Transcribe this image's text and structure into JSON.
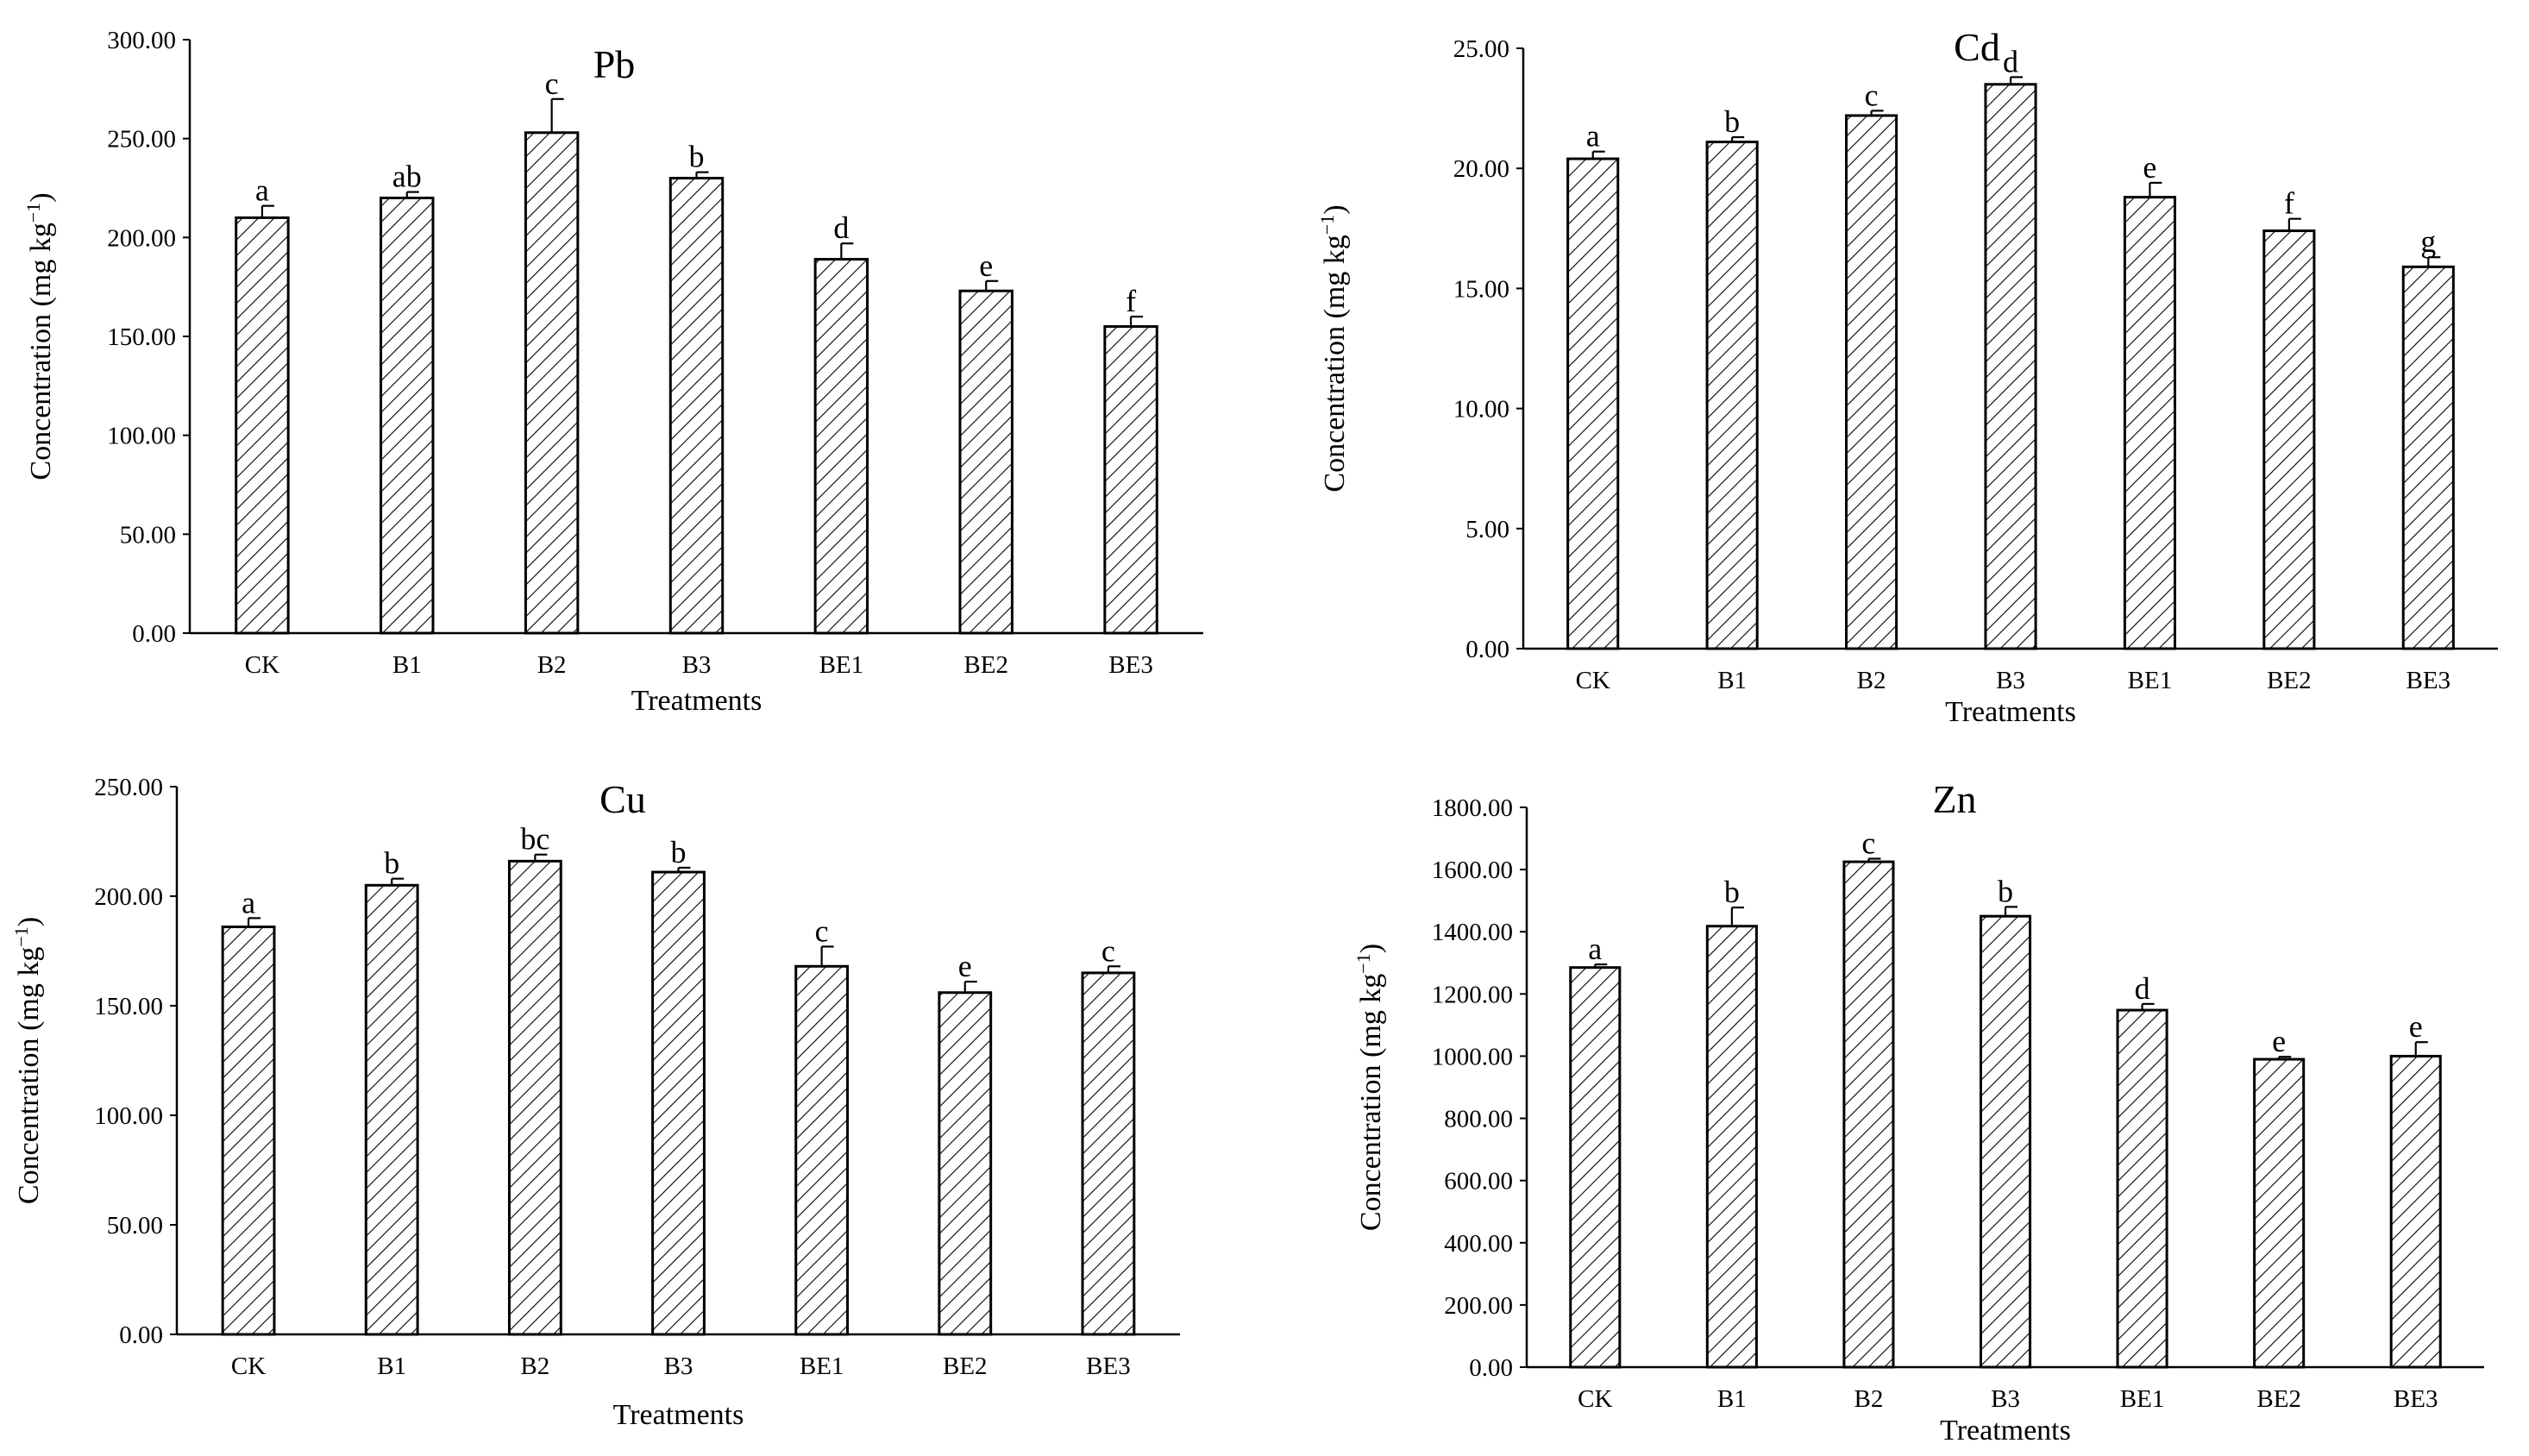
{
  "chart_data": [
    {
      "type": "bar",
      "title": "Pb",
      "xlabel": "Treatments",
      "ylabel": "Concentration (mg kg",
      "ylabel_sup": "−1",
      "ylabel_close": ")",
      "categories": [
        "CK",
        "B1",
        "B2",
        "B3",
        "BE1",
        "BE2",
        "BE3"
      ],
      "values": [
        210,
        220,
        253,
        230,
        189,
        173,
        155
      ],
      "error": [
        6,
        3,
        17,
        3,
        8,
        5,
        5
      ],
      "letters": [
        "a",
        "ab",
        "c",
        "b",
        "d",
        "e",
        "f"
      ],
      "ylim": [
        0,
        300
      ],
      "yticks": [
        "0.00",
        "50.00",
        "100.00",
        "150.00",
        "200.00",
        "250.00",
        "300.00"
      ],
      "grid": false,
      "pattern": "diagonal hatch"
    },
    {
      "type": "bar",
      "title": "Cd",
      "xlabel": "Treatments",
      "ylabel": "Concentration (mg kg",
      "ylabel_sup": "−1",
      "ylabel_close": ")",
      "categories": [
        "CK",
        "B1",
        "B2",
        "B3",
        "BE1",
        "BE2",
        "BE3"
      ],
      "values": [
        20.4,
        21.1,
        22.2,
        23.5,
        18.8,
        17.4,
        15.9
      ],
      "error": [
        0.3,
        0.2,
        0.2,
        0.3,
        0.6,
        0.5,
        0.4
      ],
      "letters": [
        "a",
        "b",
        "c",
        "d",
        "e",
        "f",
        "g"
      ],
      "ylim": [
        0,
        25
      ],
      "yticks": [
        "0.00",
        "5.00",
        "10.00",
        "15.00",
        "20.00",
        "25.00"
      ],
      "grid": false,
      "pattern": "diagonal hatch"
    },
    {
      "type": "bar",
      "title": "Cu",
      "xlabel": "Treatments",
      "ylabel": "Concentration (mg kg",
      "ylabel_sup": "−1",
      "ylabel_close": ")",
      "categories": [
        "CK",
        "B1",
        "B2",
        "B3",
        "BE1",
        "BE2",
        "BE3"
      ],
      "values": [
        186,
        205,
        216,
        211,
        168,
        156,
        165
      ],
      "error": [
        4,
        3,
        3,
        2,
        9,
        5,
        3
      ],
      "letters": [
        "a",
        "b",
        "bc",
        "b",
        "c",
        "e",
        "c"
      ],
      "ylim": [
        0,
        250
      ],
      "yticks": [
        "0.00",
        "50.00",
        "100.00",
        "150.00",
        "200.00",
        "250.00"
      ],
      "grid": false,
      "pattern": "diagonal hatch"
    },
    {
      "type": "bar",
      "title": "Zn",
      "xlabel": "Treatments",
      "ylabel": "Concentration (mg kg",
      "ylabel_sup": "−1",
      "ylabel_close": ")",
      "categories": [
        "CK",
        "B1",
        "B2",
        "B3",
        "BE1",
        "BE2",
        "BE3"
      ],
      "values": [
        1285,
        1418,
        1625,
        1450,
        1148,
        990,
        1000
      ],
      "error": [
        10,
        60,
        10,
        30,
        20,
        8,
        45
      ],
      "letters": [
        "a",
        "b",
        "c",
        "b",
        "d",
        "e",
        "e"
      ],
      "ylim": [
        0,
        1800
      ],
      "yticks": [
        "0.00",
        "200.00",
        "400.00",
        "600.00",
        "800.00",
        "1000.00",
        "1200.00",
        "1400.00",
        "1600.00",
        "1800.00"
      ],
      "grid": false,
      "pattern": "diagonal hatch"
    }
  ]
}
